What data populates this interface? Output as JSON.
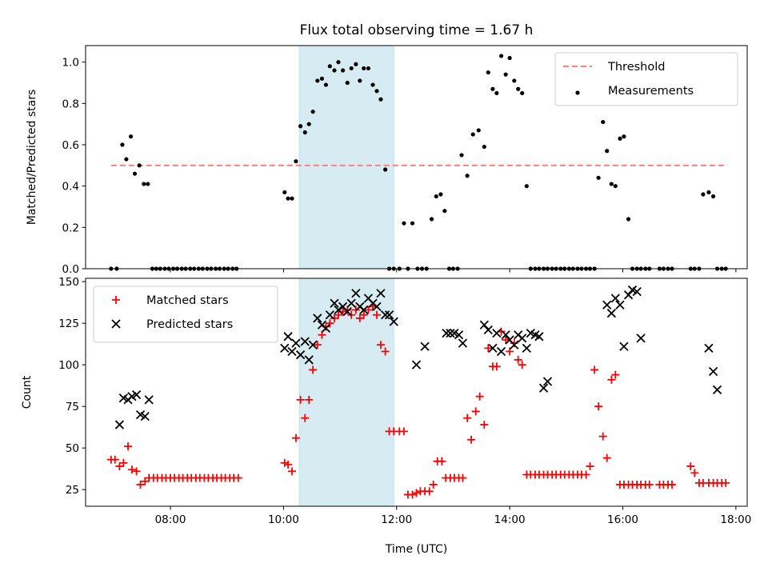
{
  "chart_data": [
    {
      "type": "scatter",
      "title": "Flux total observing time = 1.67 h",
      "xlabel": "",
      "ylabel": "Matched/Predicted stars",
      "ylim": [
        0.0,
        1.08
      ],
      "xlim": [
        6.5,
        18.2
      ],
      "yticks": [
        0.0,
        0.2,
        0.4,
        0.6,
        0.8,
        1.0
      ],
      "ytick_labels": [
        "0.0",
        "0.2",
        "0.4",
        "0.6",
        "0.8",
        "1.0"
      ],
      "grid": false,
      "legend_position": "top-right",
      "shaded_interval": {
        "x": [
          10.28,
          11.95
        ],
        "color": "#add8e6"
      },
      "threshold": {
        "name": "Threshold",
        "y": 0.5,
        "x": [
          6.95,
          17.85
        ],
        "color": "#ff7f7f"
      },
      "series": [
        {
          "name": "Measurements",
          "color": "#000000",
          "marker": "dot",
          "x": [
            6.95,
            7.05,
            7.15,
            7.22,
            7.3,
            7.37,
            7.45,
            7.53,
            7.6,
            7.68,
            7.75,
            7.82,
            7.9,
            7.97,
            8.05,
            8.12,
            8.2,
            8.27,
            8.35,
            8.42,
            8.5,
            8.57,
            8.65,
            8.72,
            8.8,
            8.87,
            8.95,
            9.02,
            9.1,
            9.17,
            10.02,
            10.08,
            10.15,
            10.22,
            10.3,
            10.38,
            10.45,
            10.52,
            10.6,
            10.68,
            10.75,
            10.82,
            10.9,
            10.97,
            11.05,
            11.13,
            11.2,
            11.28,
            11.35,
            11.42,
            11.5,
            11.58,
            11.65,
            11.72,
            11.8,
            11.87,
            11.95,
            12.05,
            12.13,
            12.2,
            12.28,
            12.37,
            12.45,
            12.53,
            12.62,
            12.7,
            12.78,
            12.85,
            12.93,
            13.0,
            13.08,
            13.15,
            13.25,
            13.35,
            13.45,
            13.55,
            13.62,
            13.7,
            13.77,
            13.85,
            13.93,
            14.0,
            14.08,
            14.15,
            14.22,
            14.3,
            14.37,
            14.45,
            14.52,
            14.6,
            14.67,
            14.75,
            14.82,
            14.9,
            14.97,
            15.05,
            15.12,
            15.2,
            15.27,
            15.35,
            15.42,
            15.5,
            15.57,
            15.65,
            15.72,
            15.8,
            15.87,
            15.95,
            16.02,
            16.1,
            16.17,
            16.25,
            16.32,
            16.4,
            16.47,
            16.65,
            16.72,
            16.8,
            16.87,
            17.2,
            17.27,
            17.35,
            17.42,
            17.52,
            17.6,
            17.67,
            17.75,
            17.82
          ],
          "y": [
            0.0,
            0.0,
            0.6,
            0.53,
            0.64,
            0.46,
            0.5,
            0.41,
            0.41,
            0.0,
            0.0,
            0.0,
            0.0,
            0.0,
            0.0,
            0.0,
            0.0,
            0.0,
            0.0,
            0.0,
            0.0,
            0.0,
            0.0,
            0.0,
            0.0,
            0.0,
            0.0,
            0.0,
            0.0,
            0.0,
            0.37,
            0.34,
            0.34,
            0.52,
            0.69,
            0.66,
            0.7,
            0.76,
            0.91,
            0.92,
            0.89,
            0.98,
            0.96,
            1.0,
            0.96,
            0.9,
            0.97,
            0.99,
            0.91,
            0.97,
            0.97,
            0.89,
            0.86,
            0.82,
            0.48,
            0.0,
            0.0,
            0.0,
            0.22,
            0.0,
            0.22,
            0.0,
            0.0,
            0.0,
            0.24,
            0.35,
            0.36,
            0.28,
            0.0,
            0.0,
            0.0,
            0.55,
            0.45,
            0.65,
            0.67,
            0.59,
            0.95,
            0.87,
            0.85,
            1.03,
            0.94,
            1.02,
            0.91,
            0.87,
            0.85,
            0.4,
            0.0,
            0.0,
            0.0,
            0.0,
            0.0,
            0.0,
            0.0,
            0.0,
            0.0,
            0.0,
            0.0,
            0.0,
            0.0,
            0.0,
            0.0,
            0.0,
            0.44,
            0.71,
            0.57,
            0.41,
            0.4,
            0.63,
            0.64,
            0.24,
            0.0,
            0.0,
            0.0,
            0.0,
            0.0,
            0.0,
            0.0,
            0.0,
            0.0,
            0.0,
            0.0,
            0.0,
            0.36,
            0.37,
            0.35,
            0.0,
            0.0,
            0.0
          ]
        }
      ]
    },
    {
      "type": "scatter",
      "title": "",
      "xlabel": "Time (UTC)",
      "ylabel": "Count",
      "ylim": [
        15,
        152
      ],
      "xlim": [
        6.5,
        18.2
      ],
      "xticks": [
        8,
        10,
        12,
        14,
        16,
        18
      ],
      "xtick_labels": [
        "08:00",
        "10:00",
        "12:00",
        "14:00",
        "16:00",
        "18:00"
      ],
      "yticks": [
        25,
        50,
        75,
        100,
        125,
        150
      ],
      "ytick_labels": [
        "25",
        "50",
        "75",
        "100",
        "125",
        "150"
      ],
      "grid": false,
      "legend_position": "top-left",
      "shaded_interval": {
        "x": [
          10.28,
          11.95
        ],
        "color": "#add8e6"
      },
      "series": [
        {
          "name": "Matched stars",
          "color": "#ff0000",
          "marker": "plus",
          "x": [
            6.95,
            7.02,
            7.1,
            7.17,
            7.25,
            7.32,
            7.4,
            7.47,
            7.55,
            7.62,
            7.7,
            7.77,
            7.85,
            7.92,
            8.0,
            8.07,
            8.15,
            8.22,
            8.3,
            8.37,
            8.45,
            8.52,
            8.6,
            8.67,
            8.75,
            8.82,
            8.9,
            8.97,
            9.05,
            9.12,
            9.2,
            10.02,
            10.08,
            10.15,
            10.22,
            10.3,
            10.38,
            10.45,
            10.52,
            10.6,
            10.68,
            10.75,
            10.82,
            10.9,
            10.97,
            11.05,
            11.13,
            11.2,
            11.28,
            11.35,
            11.42,
            11.5,
            11.58,
            11.65,
            11.72,
            11.8,
            11.87,
            11.95,
            12.05,
            12.13,
            12.2,
            12.28,
            12.35,
            12.42,
            12.5,
            12.58,
            12.65,
            12.72,
            12.8,
            12.87,
            12.95,
            13.02,
            13.1,
            13.17,
            13.25,
            13.32,
            13.4,
            13.47,
            13.55,
            13.62,
            13.7,
            13.77,
            13.85,
            13.93,
            14.0,
            14.08,
            14.15,
            14.22,
            14.3,
            14.37,
            14.45,
            14.52,
            14.6,
            14.67,
            14.75,
            14.82,
            14.9,
            14.97,
            15.05,
            15.12,
            15.2,
            15.27,
            15.35,
            15.42,
            15.5,
            15.57,
            15.65,
            15.72,
            15.8,
            15.87,
            15.95,
            16.02,
            16.1,
            16.17,
            16.25,
            16.32,
            16.4,
            16.47,
            16.65,
            16.72,
            16.8,
            16.87,
            17.2,
            17.27,
            17.35,
            17.42,
            17.52,
            17.6,
            17.67,
            17.75,
            17.82
          ],
          "y": [
            43,
            43,
            39,
            41,
            51,
            37,
            36,
            28,
            30,
            32,
            32,
            32,
            32,
            32,
            32,
            32,
            32,
            32,
            32,
            32,
            32,
            32,
            32,
            32,
            32,
            32,
            32,
            32,
            32,
            32,
            32,
            41,
            40,
            36,
            56,
            79,
            68,
            79,
            97,
            112,
            118,
            123,
            125,
            128,
            130,
            132,
            133,
            130,
            133,
            128,
            130,
            133,
            135,
            130,
            112,
            108,
            60,
            60,
            60,
            60,
            22,
            22,
            23,
            24,
            24,
            24,
            28,
            42,
            42,
            32,
            32,
            32,
            32,
            32,
            68,
            55,
            72,
            81,
            64,
            110,
            99,
            99,
            120,
            115,
            108,
            113,
            103,
            100,
            34,
            34,
            34,
            34,
            34,
            34,
            34,
            34,
            34,
            34,
            34,
            34,
            34,
            34,
            34,
            39,
            97,
            75,
            57,
            44,
            91,
            94,
            28,
            28,
            28,
            28,
            28,
            28,
            28,
            28,
            28,
            28,
            28,
            28,
            39,
            35,
            29,
            29,
            29,
            29,
            29,
            29,
            29
          ]
        },
        {
          "name": "Predicted stars",
          "color": "#000000",
          "marker": "x",
          "x": [
            7.1,
            7.17,
            7.25,
            7.32,
            7.4,
            7.47,
            7.55,
            7.62,
            10.02,
            10.08,
            10.15,
            10.22,
            10.3,
            10.38,
            10.45,
            10.52,
            10.6,
            10.68,
            10.75,
            10.82,
            10.9,
            10.97,
            11.05,
            11.13,
            11.2,
            11.28,
            11.35,
            11.42,
            11.5,
            11.58,
            11.65,
            11.72,
            11.8,
            11.87,
            11.95,
            12.35,
            12.5,
            12.88,
            12.95,
            13.02,
            13.1,
            13.17,
            13.55,
            13.62,
            13.7,
            13.77,
            13.85,
            13.93,
            14.0,
            14.08,
            14.15,
            14.22,
            14.3,
            14.37,
            14.45,
            14.52,
            14.6,
            14.67,
            15.72,
            15.8,
            15.87,
            15.95,
            16.02,
            16.1,
            16.17,
            16.25,
            16.32,
            17.52,
            17.6,
            17.67
          ],
          "y": [
            64,
            80,
            79,
            81,
            82,
            70,
            69,
            79,
            110,
            117,
            108,
            113,
            106,
            114,
            103,
            112,
            128,
            124,
            122,
            130,
            137,
            133,
            135,
            132,
            137,
            143,
            135,
            133,
            140,
            137,
            135,
            143,
            130,
            130,
            126,
            100,
            111,
            119,
            119,
            119,
            118,
            113,
            124,
            121,
            110,
            119,
            108,
            118,
            115,
            112,
            118,
            116,
            110,
            119,
            118,
            117,
            86,
            90,
            136,
            131,
            140,
            136,
            111,
            142,
            145,
            144,
            116,
            110,
            96,
            85
          ]
        }
      ]
    }
  ]
}
